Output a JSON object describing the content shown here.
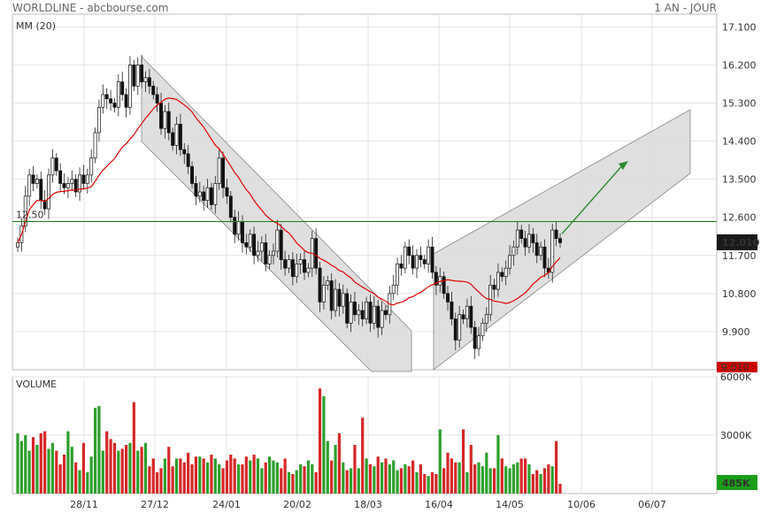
{
  "header": {
    "title": "WORLDLINE - abcbourse.com",
    "period": "1 AN - JOUR"
  },
  "indicators": {
    "ma_label": "MM (20)",
    "ref_label": "12.50",
    "volume_label": "VOLUME"
  },
  "colors": {
    "up": "#2ca02c",
    "down": "#d62728",
    "ma": "#e00000",
    "ref": "#1b7a1b",
    "arrow": "#2e8b2e",
    "channel": "#d9d9d9",
    "grid": "#e3e3e3"
  },
  "chart_data": {
    "type": "candlestick",
    "title": "WORLDLINE - abcbourse.com",
    "price_axis": {
      "ticks": [
        17.1,
        16.2,
        15.3,
        14.4,
        13.5,
        12.6,
        11.7,
        10.8,
        9.9
      ],
      "tick_labels": [
        "17.100",
        "16.200",
        "15.300",
        "14.400",
        "13.500",
        "12.600",
        "11.700",
        "10.800",
        "9.900"
      ],
      "range": [
        9.0,
        17.4
      ]
    },
    "x_labels": [
      "28/11",
      "27/12",
      "24/01",
      "20/02",
      "18/03",
      "16/04",
      "14/05",
      "10/06",
      "06/07"
    ],
    "last_price": "12.010",
    "min_price": "9.010",
    "reference_level": 12.5,
    "closes": [
      12.0,
      12.4,
      13.1,
      13.6,
      13.4,
      13.5,
      13.0,
      12.8,
      13.6,
      14.0,
      13.7,
      13.4,
      13.3,
      13.4,
      13.5,
      13.2,
      13.6,
      13.4,
      13.6,
      14.0,
      14.6,
      15.2,
      15.5,
      15.4,
      15.3,
      15.2,
      15.8,
      15.5,
      15.2,
      16.2,
      15.7,
      16.2,
      15.8,
      15.9,
      15.7,
      15.5,
      15.3,
      14.7,
      15.1,
      14.6,
      14.3,
      14.8,
      14.2,
      14.1,
      13.8,
      13.4,
      13.1,
      13.2,
      13.0,
      13.3,
      12.9,
      13.4,
      14.0,
      13.3,
      13.1,
      12.6,
      12.2,
      12.5,
      12.0,
      11.9,
      12.2,
      11.7,
      11.8,
      12.0,
      11.5,
      11.7,
      11.8,
      12.3,
      11.6,
      11.4,
      11.6,
      11.2,
      11.5,
      11.6,
      11.3,
      11.4,
      12.1,
      11.4,
      10.6,
      11.0,
      11.1,
      10.4,
      10.9,
      10.5,
      10.8,
      10.1,
      10.6,
      10.3,
      10.4,
      10.2,
      10.6,
      10.1,
      10.5,
      10.0,
      10.4,
      10.3,
      10.8,
      11.0,
      11.5,
      11.4,
      11.9,
      11.7,
      11.4,
      11.7,
      11.6,
      11.5,
      11.9,
      11.3,
      11.0,
      11.2,
      10.8,
      10.6,
      10.2,
      9.7,
      10.3,
      10.2,
      10.5,
      10.0,
      9.5,
      9.8,
      10.1,
      10.3,
      11.0,
      10.9,
      11.3,
      11.2,
      11.4,
      11.7,
      11.9,
      12.3,
      12.1,
      11.9,
      12.2,
      12.0,
      11.7,
      11.9,
      11.4,
      11.3,
      12.3,
      12.1,
      12.0
    ],
    "volume_axis": {
      "tick_labels": [
        "6000K",
        "3000K"
      ],
      "ticks": [
        6000,
        3000
      ],
      "range": [
        0,
        6000
      ]
    },
    "last_volume": "485K",
    "volumes": [
      3100,
      2700,
      3000,
      2200,
      2900,
      2500,
      3100,
      3200,
      2300,
      2600,
      2200,
      1500,
      2000,
      3200,
      2400,
      1600,
      1200,
      2600,
      1100,
      1900,
      4400,
      4500,
      2200,
      3200,
      2800,
      2600,
      2200,
      2300,
      2500,
      2600,
      4700,
      2200,
      2400,
      2600,
      1400,
      1800,
      1100,
      1300,
      1800,
      2400,
      1400,
      1800,
      1800,
      1600,
      2100,
      1500,
      1900,
      1900,
      1800,
      1600,
      2000,
      1800,
      1500,
      1300,
      1700,
      2000,
      1800,
      1500,
      1500,
      1900,
      1700,
      2000,
      1800,
      1300,
      1600,
      1900,
      1700,
      1600,
      1300,
      1800,
      1100,
      1000,
      1200,
      1500,
      1400,
      1700,
      1500,
      1100,
      5400,
      5000,
      2700,
      1700,
      2500,
      3100,
      1600,
      1200,
      1300,
      2500,
      1300,
      3900,
      1800,
      1500,
      1400,
      1900,
      1600,
      1800,
      1500,
      1700,
      1200,
      1300,
      1500,
      1400,
      1700,
      1100,
      1500,
      1000,
      900,
      1100,
      1000,
      3300,
      1300,
      2100,
      1800,
      1600,
      1600,
      3300,
      1100,
      2500,
      1500,
      1600,
      1400,
      2100,
      1300,
      1300,
      3000,
      1800,
      1400,
      1300,
      1500,
      1600,
      1800,
      1800,
      1500,
      1000,
      1200,
      1000,
      1300,
      1500,
      1400,
      2700,
      500
    ],
    "ma_period": 20
  }
}
